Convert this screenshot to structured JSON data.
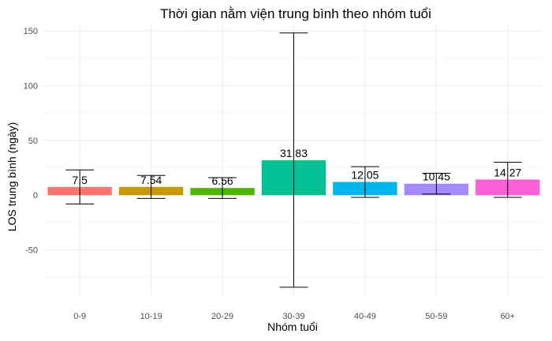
{
  "chart_data": {
    "type": "bar",
    "title": "Thời gian nằm viện trung bình theo nhóm tuổi",
    "xlabel": "Nhóm tuổi",
    "ylabel": "LOS trung bình (ngày)",
    "categories": [
      "0-9",
      "10-19",
      "20-29",
      "30-39",
      "40-49",
      "50-59",
      "60+"
    ],
    "values": [
      7.5,
      7.54,
      6.56,
      31.83,
      12.05,
      10.45,
      14.27
    ],
    "value_labels": [
      "7.5",
      "7.54",
      "6.56",
      "31.83",
      "12.05",
      "10.45",
      "14.27"
    ],
    "error_low": [
      -8,
      -3,
      -3,
      -84,
      -2,
      1,
      -2
    ],
    "error_high": [
      23,
      18,
      16,
      148,
      26,
      20,
      30
    ],
    "colors": [
      "#F8766D",
      "#C49A00",
      "#53B400",
      "#00C094",
      "#00B6EB",
      "#A58AFF",
      "#FB61D7"
    ],
    "ylim": [
      -92,
      155
    ],
    "yticks": [
      -50,
      0,
      50,
      100,
      150
    ],
    "grid": true,
    "legend": "none"
  }
}
